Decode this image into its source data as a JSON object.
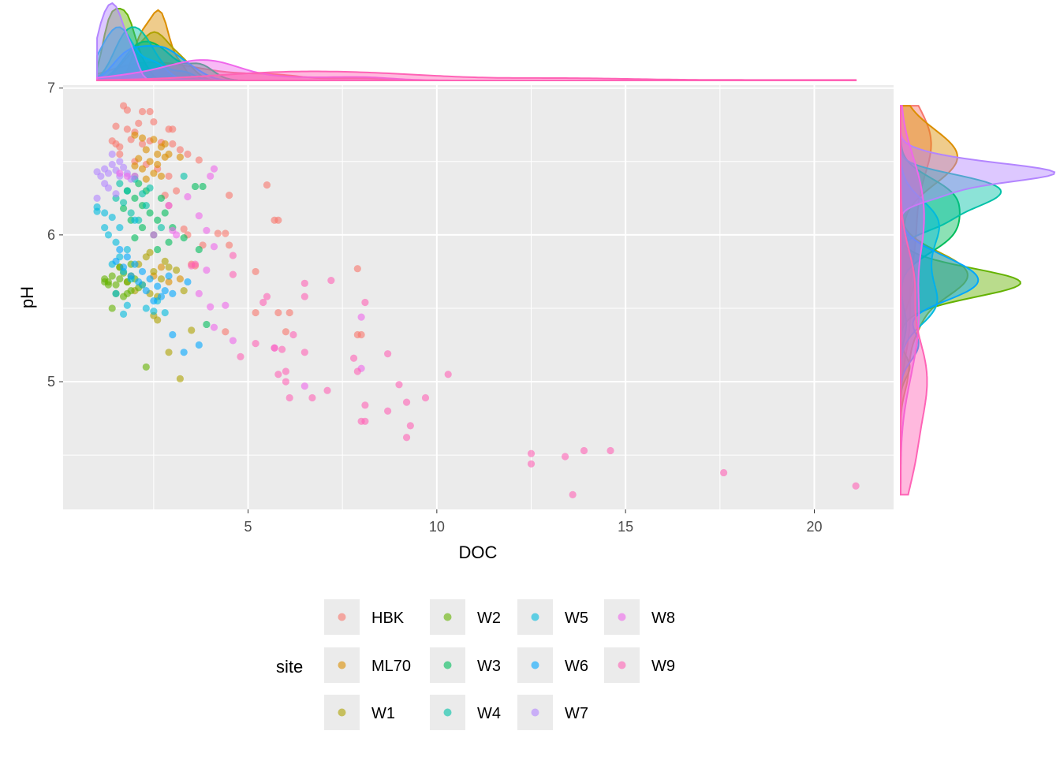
{
  "chart_data": {
    "type": "scatter",
    "title": "",
    "xlabel": "DOC",
    "ylabel": "pH",
    "xlim": [
      0.1,
      22.1
    ],
    "ylim": [
      4.13,
      7.02
    ],
    "xticks": [
      5,
      10,
      15,
      20
    ],
    "yticks": [
      5,
      6,
      7
    ],
    "grid": true,
    "marginals": "density (top: DOC, right: pH)",
    "legend": {
      "title": "site",
      "placement": "bottom"
    },
    "series": [
      {
        "name": "HBK",
        "color": "#F8766D",
        "points": [
          [
            1.7,
            6.88
          ],
          [
            1.8,
            6.85
          ],
          [
            2.2,
            6.84
          ],
          [
            2.4,
            6.84
          ],
          [
            1.5,
            6.74
          ],
          [
            1.8,
            6.72
          ],
          [
            2.0,
            6.7
          ],
          [
            2.1,
            6.76
          ],
          [
            2.5,
            6.77
          ],
          [
            2.9,
            6.72
          ],
          [
            3.0,
            6.72
          ],
          [
            1.4,
            6.64
          ],
          [
            1.5,
            6.62
          ],
          [
            1.6,
            6.6
          ],
          [
            1.9,
            6.65
          ],
          [
            2.2,
            6.62
          ],
          [
            2.4,
            6.64
          ],
          [
            2.7,
            6.63
          ],
          [
            3.0,
            6.62
          ],
          [
            3.2,
            6.58
          ],
          [
            3.4,
            6.55
          ],
          [
            3.7,
            6.51
          ],
          [
            1.6,
            6.55
          ],
          [
            2.0,
            6.5
          ],
          [
            2.3,
            6.48
          ],
          [
            2.6,
            6.45
          ],
          [
            2.9,
            6.4
          ],
          [
            3.1,
            6.3
          ],
          [
            2.8,
            6.27
          ],
          [
            2.0,
            6.4
          ],
          [
            5.5,
            6.34
          ],
          [
            5.7,
            6.1
          ],
          [
            5.8,
            6.1
          ],
          [
            4.5,
            6.27
          ],
          [
            4.2,
            6.01
          ],
          [
            4.4,
            6.01
          ],
          [
            4.5,
            5.93
          ],
          [
            3.8,
            5.93
          ],
          [
            3.3,
            6.04
          ],
          [
            3.4,
            6.0
          ],
          [
            5.2,
            5.75
          ],
          [
            5.2,
            5.47
          ],
          [
            5.8,
            5.47
          ],
          [
            6.0,
            5.34
          ],
          [
            6.1,
            5.47
          ],
          [
            7.9,
            5.77
          ],
          [
            7.9,
            5.32
          ],
          [
            8.0,
            5.32
          ],
          [
            4.4,
            5.34
          ],
          [
            3.6,
            5.79
          ],
          [
            3.5,
            5.8
          ],
          [
            2.9,
            6.2
          ]
        ]
      },
      {
        "name": "ML70",
        "color": "#DB8E00",
        "points": [
          [
            2.0,
            6.68
          ],
          [
            2.2,
            6.66
          ],
          [
            2.5,
            6.65
          ],
          [
            2.7,
            6.6
          ],
          [
            2.3,
            6.58
          ],
          [
            2.6,
            6.55
          ],
          [
            2.8,
            6.53
          ],
          [
            2.1,
            6.52
          ],
          [
            2.4,
            6.5
          ],
          [
            2.9,
            6.55
          ],
          [
            3.2,
            6.53
          ],
          [
            2.2,
            6.45
          ],
          [
            2.5,
            6.42
          ],
          [
            2.7,
            6.4
          ],
          [
            2.0,
            6.47
          ],
          [
            2.8,
            6.62
          ],
          [
            2.6,
            6.48
          ],
          [
            2.3,
            6.38
          ],
          [
            2.7,
            5.78
          ],
          [
            2.5,
            5.72
          ],
          [
            3.2,
            5.7
          ],
          [
            2.9,
            5.68
          ]
        ]
      },
      {
        "name": "W1",
        "color": "#AEA200",
        "points": [
          [
            1.6,
            5.78
          ],
          [
            1.9,
            5.72
          ],
          [
            2.1,
            5.8
          ],
          [
            2.3,
            5.85
          ],
          [
            2.5,
            5.75
          ],
          [
            2.7,
            5.7
          ],
          [
            2.9,
            5.78
          ],
          [
            3.1,
            5.76
          ],
          [
            2.2,
            5.66
          ],
          [
            2.4,
            5.6
          ],
          [
            2.6,
            5.58
          ],
          [
            2.0,
            5.62
          ],
          [
            2.8,
            5.82
          ],
          [
            3.3,
            5.62
          ],
          [
            3.2,
            5.02
          ],
          [
            2.9,
            5.2
          ],
          [
            3.5,
            5.35
          ],
          [
            2.4,
            5.88
          ],
          [
            1.8,
            5.68
          ],
          [
            2.5,
            5.45
          ],
          [
            2.6,
            5.42
          ]
        ]
      },
      {
        "name": "W2",
        "color": "#64B200",
        "points": [
          [
            1.2,
            5.7
          ],
          [
            1.3,
            5.68
          ],
          [
            1.4,
            5.72
          ],
          [
            1.5,
            5.66
          ],
          [
            1.6,
            5.7
          ],
          [
            1.7,
            5.74
          ],
          [
            1.8,
            5.68
          ],
          [
            1.9,
            5.62
          ],
          [
            2.0,
            5.7
          ],
          [
            1.3,
            5.66
          ],
          [
            1.5,
            5.6
          ],
          [
            1.7,
            5.58
          ],
          [
            1.4,
            5.5
          ],
          [
            2.3,
            5.1
          ],
          [
            1.6,
            5.78
          ],
          [
            1.9,
            5.8
          ],
          [
            2.1,
            5.64
          ],
          [
            1.2,
            5.68
          ],
          [
            1.8,
            5.6
          ]
        ]
      },
      {
        "name": "W3",
        "color": "#00BD5C",
        "points": [
          [
            1.8,
            6.3
          ],
          [
            2.0,
            6.25
          ],
          [
            2.2,
            6.2
          ],
          [
            2.4,
            6.15
          ],
          [
            2.6,
            6.1
          ],
          [
            2.8,
            6.15
          ],
          [
            3.0,
            6.05
          ],
          [
            2.1,
            6.35
          ],
          [
            2.3,
            6.3
          ],
          [
            1.9,
            6.1
          ],
          [
            2.5,
            6.0
          ],
          [
            2.7,
            6.25
          ],
          [
            3.8,
            6.33
          ],
          [
            3.6,
            6.33
          ],
          [
            3.9,
            5.39
          ],
          [
            3.3,
            5.98
          ],
          [
            3.7,
            5.9
          ],
          [
            2.2,
            6.05
          ],
          [
            2.9,
            5.95
          ],
          [
            1.7,
            6.18
          ],
          [
            2.6,
            5.9
          ],
          [
            2.0,
            5.98
          ]
        ]
      },
      {
        "name": "W4",
        "color": "#00C1A7",
        "points": [
          [
            1.6,
            6.35
          ],
          [
            1.8,
            6.3
          ],
          [
            2.0,
            6.38
          ],
          [
            2.2,
            6.28
          ],
          [
            1.7,
            6.22
          ],
          [
            1.9,
            6.15
          ],
          [
            2.3,
            6.2
          ],
          [
            3.3,
            6.4
          ],
          [
            2.1,
            6.1
          ],
          [
            1.5,
            6.25
          ],
          [
            2.4,
            6.32
          ],
          [
            2.7,
            6.05
          ]
        ]
      },
      {
        "name": "W5",
        "color": "#00BADE",
        "points": [
          [
            1.0,
            6.19
          ],
          [
            1.0,
            6.16
          ],
          [
            1.2,
            6.15
          ],
          [
            1.4,
            6.12
          ],
          [
            1.6,
            6.05
          ],
          [
            1.3,
            6.0
          ],
          [
            1.5,
            5.95
          ],
          [
            1.8,
            5.9
          ],
          [
            1.6,
            5.85
          ],
          [
            1.4,
            5.8
          ],
          [
            1.7,
            5.75
          ],
          [
            1.9,
            5.7
          ],
          [
            2.2,
            5.66
          ],
          [
            1.5,
            5.6
          ],
          [
            1.8,
            5.52
          ],
          [
            2.3,
            5.5
          ],
          [
            2.5,
            5.48
          ],
          [
            2.8,
            5.47
          ],
          [
            1.7,
            5.46
          ],
          [
            1.2,
            6.05
          ],
          [
            2.0,
            6.1
          ],
          [
            2.6,
            5.55
          ]
        ]
      },
      {
        "name": "W6",
        "color": "#00A6FF",
        "points": [
          [
            1.6,
            5.9
          ],
          [
            1.8,
            5.85
          ],
          [
            2.0,
            5.8
          ],
          [
            2.2,
            5.75
          ],
          [
            2.4,
            5.7
          ],
          [
            2.6,
            5.65
          ],
          [
            2.8,
            5.62
          ],
          [
            3.0,
            5.6
          ],
          [
            2.5,
            5.55
          ],
          [
            2.7,
            5.58
          ],
          [
            1.5,
            5.82
          ],
          [
            1.9,
            5.72
          ],
          [
            2.1,
            5.68
          ],
          [
            3.0,
            5.32
          ],
          [
            3.3,
            5.2
          ],
          [
            3.7,
            5.25
          ],
          [
            3.4,
            5.68
          ],
          [
            2.3,
            5.62
          ],
          [
            1.7,
            5.78
          ],
          [
            2.9,
            5.72
          ]
        ]
      },
      {
        "name": "W7",
        "color": "#B385FF",
        "points": [
          [
            1.0,
            6.43
          ],
          [
            1.1,
            6.4
          ],
          [
            1.2,
            6.45
          ],
          [
            1.3,
            6.42
          ],
          [
            1.4,
            6.48
          ],
          [
            1.5,
            6.44
          ],
          [
            1.6,
            6.4
          ],
          [
            1.7,
            6.46
          ],
          [
            1.8,
            6.42
          ],
          [
            1.9,
            6.38
          ],
          [
            1.3,
            6.32
          ],
          [
            1.5,
            6.28
          ],
          [
            1.0,
            6.25
          ],
          [
            1.2,
            6.35
          ],
          [
            1.6,
            6.5
          ],
          [
            1.4,
            6.55
          ],
          [
            2.0,
            6.4
          ]
        ]
      },
      {
        "name": "W8",
        "color": "#EF67EB",
        "points": [
          [
            4.1,
            6.45
          ],
          [
            4.0,
            6.4
          ],
          [
            3.9,
            6.03
          ],
          [
            4.1,
            5.92
          ],
          [
            3.9,
            5.76
          ],
          [
            4.0,
            5.51
          ],
          [
            4.4,
            5.52
          ],
          [
            4.6,
            5.28
          ],
          [
            4.1,
            5.37
          ],
          [
            5.7,
            5.23
          ],
          [
            6.5,
            4.97
          ],
          [
            8.0,
            5.44
          ],
          [
            8.0,
            5.09
          ],
          [
            3.7,
            6.13
          ],
          [
            3.4,
            6.26
          ],
          [
            3.0,
            6.03
          ],
          [
            3.1,
            6.0
          ],
          [
            2.9,
            6.2
          ],
          [
            2.5,
            6.0
          ],
          [
            1.6,
            6.42
          ],
          [
            1.8,
            6.4
          ],
          [
            3.7,
            5.6
          ]
        ]
      },
      {
        "name": "W9",
        "color": "#FF63B6",
        "points": [
          [
            5.2,
            5.26
          ],
          [
            5.8,
            5.05
          ],
          [
            6.0,
            5.07
          ],
          [
            6.1,
            4.89
          ],
          [
            6.7,
            4.89
          ],
          [
            7.1,
            4.94
          ],
          [
            7.9,
            5.07
          ],
          [
            8.1,
            4.84
          ],
          [
            8.0,
            4.73
          ],
          [
            8.1,
            4.73
          ],
          [
            8.7,
            4.8
          ],
          [
            9.0,
            4.98
          ],
          [
            9.2,
            4.86
          ],
          [
            9.2,
            4.62
          ],
          [
            9.3,
            4.7
          ],
          [
            9.7,
            4.89
          ],
          [
            10.3,
            5.05
          ],
          [
            12.5,
            4.51
          ],
          [
            12.5,
            4.44
          ],
          [
            13.4,
            4.49
          ],
          [
            13.6,
            4.23
          ],
          [
            13.9,
            4.53
          ],
          [
            14.6,
            4.53
          ],
          [
            17.6,
            4.38
          ],
          [
            21.1,
            4.29
          ],
          [
            8.7,
            5.19
          ],
          [
            7.8,
            5.16
          ],
          [
            6.5,
            5.2
          ],
          [
            6.0,
            5.0
          ],
          [
            5.5,
            5.58
          ],
          [
            5.4,
            5.54
          ],
          [
            5.7,
            5.23
          ],
          [
            5.9,
            5.22
          ],
          [
            6.5,
            5.67
          ],
          [
            7.2,
            5.69
          ],
          [
            6.5,
            5.58
          ],
          [
            8.1,
            5.54
          ],
          [
            6.2,
            5.32
          ],
          [
            4.8,
            5.17
          ],
          [
            4.6,
            5.86
          ],
          [
            4.6,
            5.73
          ],
          [
            3.5,
            5.79
          ],
          [
            3.6,
            5.8
          ]
        ]
      }
    ]
  }
}
